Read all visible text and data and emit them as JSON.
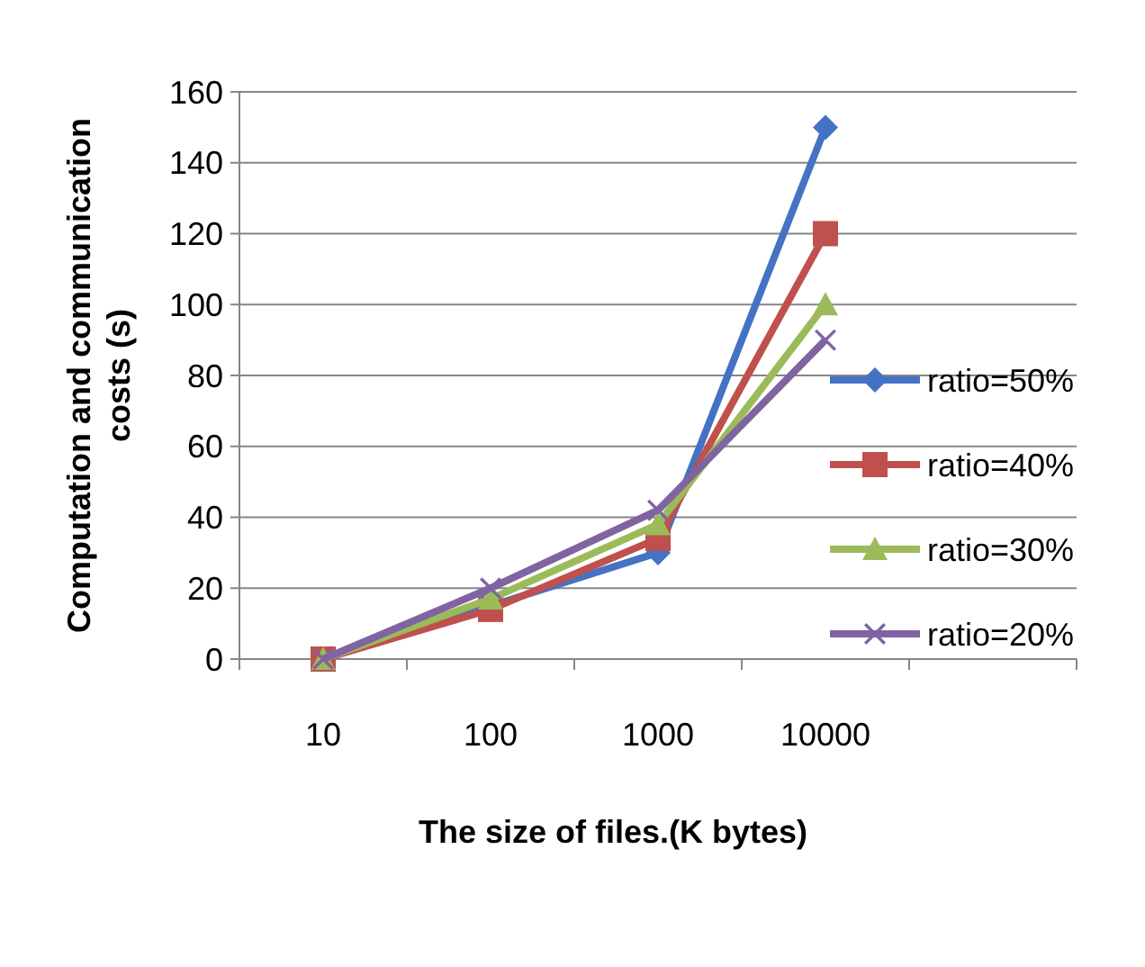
{
  "chart_data": {
    "type": "line",
    "xlabel": "The size of files.(K bytes)",
    "ylabel": "Computation and communication costs (s)",
    "categories": [
      "10",
      "100",
      "1000",
      "10000",
      null
    ],
    "ylim": [
      0,
      160
    ],
    "yticks": [
      0,
      20,
      40,
      60,
      80,
      100,
      120,
      140,
      160
    ],
    "grid": "y",
    "legend": "right",
    "series": [
      {
        "name": "ratio=50%",
        "color": "#4472c4",
        "marker": "diamond",
        "values": [
          0,
          15,
          30,
          150,
          null
        ]
      },
      {
        "name": "ratio=40%",
        "color": "#c0504d",
        "marker": "square",
        "values": [
          0,
          14,
          34,
          120,
          null
        ]
      },
      {
        "name": "ratio=30%",
        "color": "#9bbb59",
        "marker": "triangle",
        "values": [
          0,
          17,
          38,
          100,
          null
        ]
      },
      {
        "name": "ratio=20%",
        "color": "#8064a2",
        "marker": "cross",
        "values": [
          0,
          20,
          42,
          90,
          null
        ]
      }
    ]
  }
}
